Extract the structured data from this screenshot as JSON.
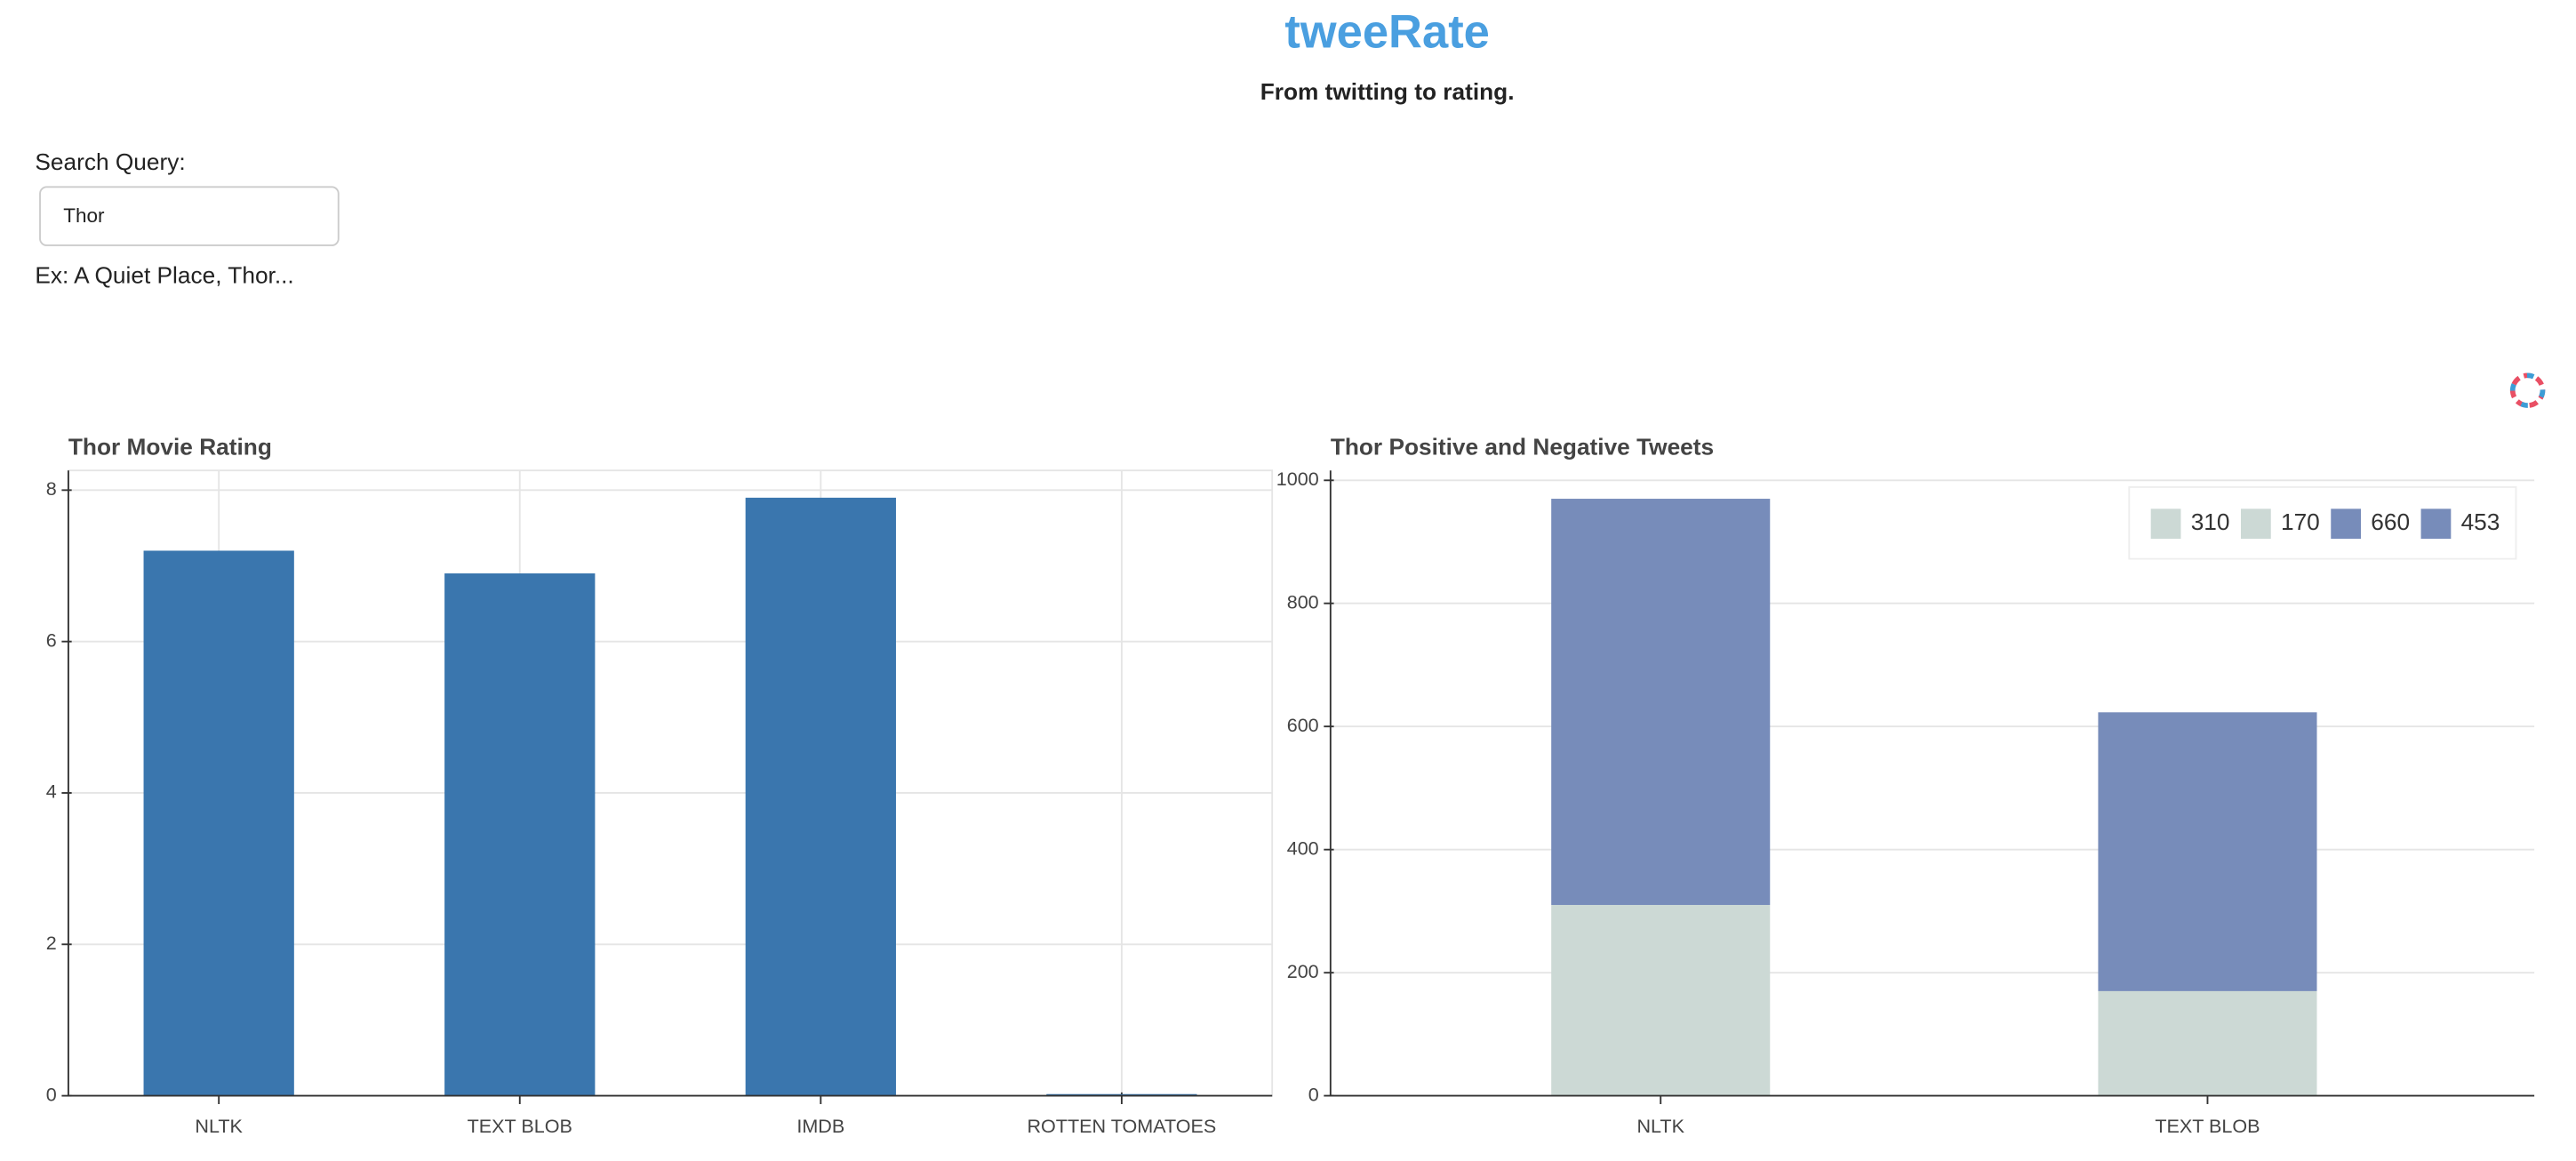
{
  "header": {
    "title": "tweeRate",
    "subtitle": "From twitting to rating."
  },
  "search": {
    "label": "Search Query:",
    "value": "Thor",
    "hint": "Ex: A Quiet Place, Thor..."
  },
  "chart_data": [
    {
      "type": "bar",
      "title": "Thor Movie Rating",
      "categories": [
        "NLTK",
        "TEXT BLOB",
        "IMDB",
        "ROTTEN TOMATOES"
      ],
      "values": [
        7.2,
        6.9,
        7.9,
        0
      ],
      "color": "#3a76ae",
      "ylim": [
        0,
        8.26
      ],
      "yticks": [
        0,
        2,
        4,
        6,
        8
      ],
      "grid": true
    },
    {
      "type": "stacked_bar",
      "title": "Thor Positive and Negative Tweets",
      "categories": [
        "NLTK",
        "TEXT BLOB"
      ],
      "series": [
        {
          "name": "310",
          "color": "#ccd9d5",
          "values": [
            310,
            null
          ]
        },
        {
          "name": "170",
          "color": "#ccd9d5",
          "values": [
            null,
            170
          ]
        },
        {
          "name": "660",
          "color": "#778cba",
          "values": [
            660,
            null
          ]
        },
        {
          "name": "453",
          "color": "#778cba",
          "values": [
            null,
            453
          ]
        }
      ],
      "ylim": [
        0,
        1016
      ],
      "yticks": [
        0,
        200,
        400,
        600,
        800,
        1000
      ],
      "grid": true,
      "legend": "top-right"
    }
  ]
}
